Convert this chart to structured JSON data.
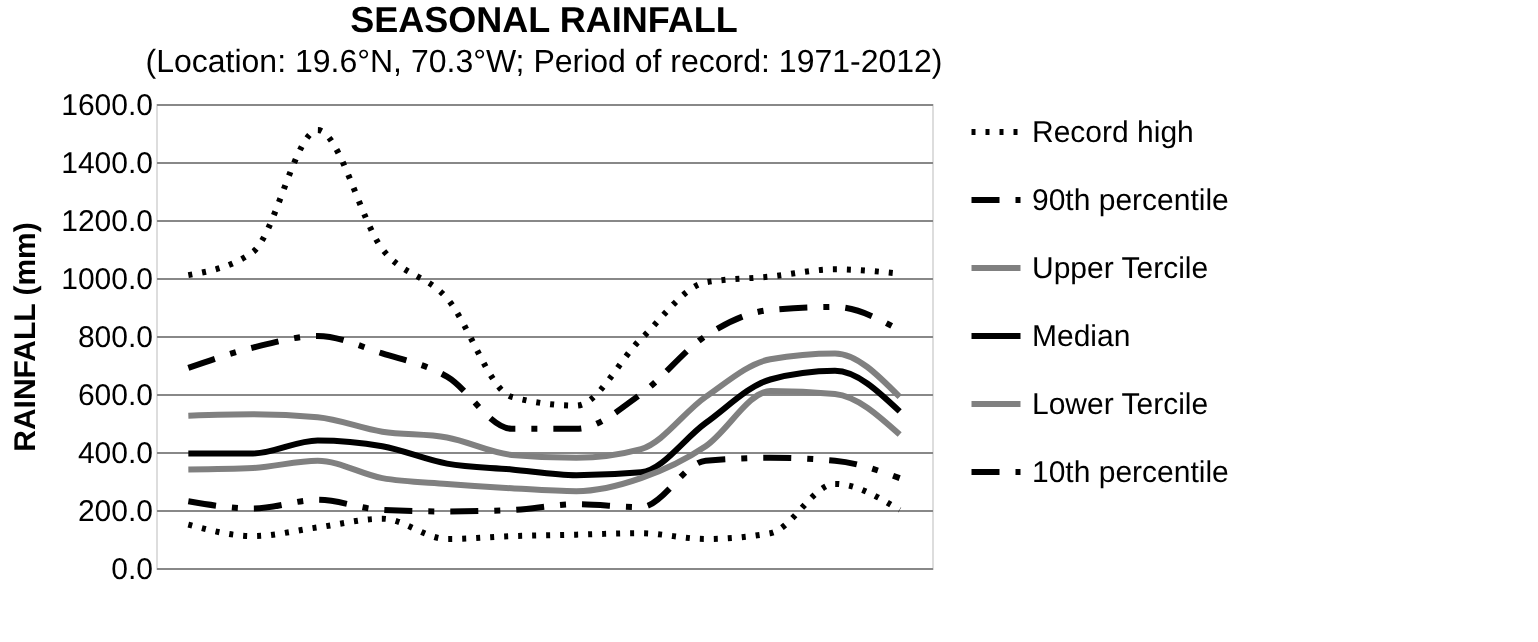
{
  "chart_data": {
    "type": "line",
    "title": "SEASONAL RAINFALL",
    "subtitle": "(Location: 19.6°N, 70.3°W; Period of record: 1971-2012)",
    "ylabel": "RAINFALL (mm)",
    "categories": [
      null,
      null,
      null,
      null,
      null,
      null,
      null,
      null,
      null,
      null,
      null,
      null
    ],
    "ylim": [
      0,
      1600
    ],
    "yticks": [
      {
        "value": 0,
        "label": "0.0"
      },
      {
        "value": 200,
        "label": "200.0"
      },
      {
        "value": 400,
        "label": "400.0"
      },
      {
        "value": 600,
        "label": "600.0"
      },
      {
        "value": 800,
        "label": "800.0"
      },
      {
        "value": 1000,
        "label": "1000.0"
      },
      {
        "value": 1200,
        "label": "1200.0"
      },
      {
        "value": 1400,
        "label": "1400.0"
      },
      {
        "value": 1600,
        "label": "1600.0"
      }
    ],
    "grid": "y",
    "legend": "right",
    "tick_labels": "y",
    "marker": "none",
    "series": [
      {
        "name": "Record high",
        "color": "#000000",
        "line_style": "dotted",
        "values": [
          1010,
          1090,
          1510,
          1100,
          930,
          590,
          560,
          790,
          985,
          1005,
          1030,
          1015
        ]
      },
      {
        "name": "90th percentile",
        "color": "#000000",
        "line_style": "dashed",
        "values": [
          690,
          760,
          800,
          740,
          660,
          480,
          480,
          600,
          800,
          890,
          900,
          820
        ]
      },
      {
        "name": "Upper Tercile",
        "color": "#808080",
        "line_style": "solid",
        "values": [
          525,
          530,
          520,
          470,
          450,
          390,
          380,
          410,
          590,
          720,
          740,
          590
        ]
      },
      {
        "name": "Median",
        "color": "#000000",
        "line_style": "solid",
        "values": [
          395,
          395,
          440,
          420,
          360,
          340,
          320,
          330,
          500,
          650,
          680,
          540
        ]
      },
      {
        "name": "Lower Tercile",
        "color": "#808080",
        "line_style": "solid",
        "values": [
          340,
          345,
          370,
          310,
          290,
          275,
          265,
          310,
          420,
          610,
          600,
          460
        ]
      },
      {
        "name": "10th percentile",
        "color": "#000000",
        "line_style": "dashed",
        "values": [
          230,
          205,
          235,
          200,
          195,
          200,
          220,
          210,
          370,
          380,
          370,
          310
        ]
      },
      {
        "name": null,
        "color": "#000000",
        "line_style": "dotted",
        "values": [
          150,
          110,
          140,
          170,
          100,
          110,
          115,
          120,
          100,
          120,
          290,
          200
        ]
      }
    ]
  }
}
